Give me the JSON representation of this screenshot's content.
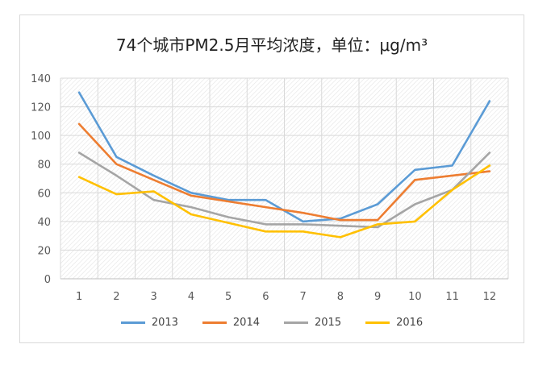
{
  "chart_data": {
    "type": "line",
    "title": "74个城市PM2.5月平均浓度，单位：μg/m³",
    "xlabel": "",
    "ylabel": "",
    "x": [
      1,
      2,
      3,
      4,
      5,
      6,
      7,
      8,
      9,
      10,
      11,
      12
    ],
    "ylim": [
      0,
      140
    ],
    "yticks": [
      0,
      20,
      40,
      60,
      80,
      100,
      120,
      140
    ],
    "grid": true,
    "legend_position": "bottom",
    "series": [
      {
        "name": "2013",
        "color": "#5B9BD5",
        "values": [
          130,
          85,
          72,
          60,
          55,
          55,
          40,
          42,
          52,
          76,
          79,
          124
        ]
      },
      {
        "name": "2014",
        "color": "#ED7D31",
        "values": [
          108,
          80,
          69,
          58,
          54,
          50,
          46,
          41,
          41,
          69,
          72,
          75
        ]
      },
      {
        "name": "2015",
        "color": "#A5A5A5",
        "values": [
          88,
          72,
          55,
          50,
          43,
          38,
          38,
          37,
          36,
          52,
          62,
          88
        ]
      },
      {
        "name": "2016",
        "color": "#FFC000",
        "values": [
          71,
          59,
          61,
          45,
          39,
          33,
          33,
          29,
          38,
          40,
          62,
          79
        ]
      }
    ]
  }
}
